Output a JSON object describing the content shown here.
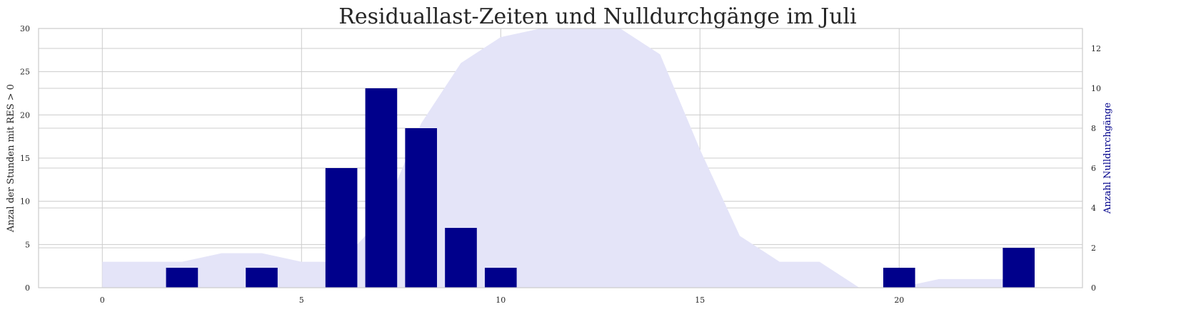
{
  "chart_data": {
    "type": "bar",
    "title": "Residuallast-Zeiten und Nulldurchgänge im Juli",
    "x": [
      0,
      1,
      2,
      3,
      4,
      5,
      6,
      7,
      8,
      9,
      10,
      11,
      12,
      13,
      14,
      15,
      16,
      17,
      18,
      19,
      20,
      21,
      22,
      23
    ],
    "xticks": [
      0,
      5,
      10,
      15,
      20
    ],
    "xlim": [
      -1.6,
      24.6
    ],
    "series": [
      {
        "type": "area",
        "axis": "left",
        "color": "#e4e4f8",
        "values": [
          3,
          3,
          3,
          4,
          4,
          3,
          3,
          8,
          19,
          26,
          29,
          30,
          30,
          30,
          27,
          16,
          6,
          3,
          3,
          0,
          0,
          1,
          1,
          1
        ]
      },
      {
        "type": "bar",
        "axis": "right",
        "color": "#00008b",
        "x": [
          2,
          4,
          6,
          7,
          8,
          9,
          10,
          20,
          23
        ],
        "values": [
          1,
          1,
          6,
          10,
          8,
          3,
          1,
          1,
          2
        ]
      }
    ],
    "ylabel": "Anzal der Stunden mit RES > 0",
    "ylim": [
      0,
      30
    ],
    "yticks": [
      0,
      5,
      10,
      15,
      20,
      25,
      30
    ],
    "y2label": "Anzahl Nulldurchgänge",
    "y2label_color": "#00008b",
    "y2lim": [
      0,
      13
    ],
    "y2ticks": [
      0,
      2,
      4,
      6,
      8,
      10,
      12
    ],
    "grid": true
  }
}
